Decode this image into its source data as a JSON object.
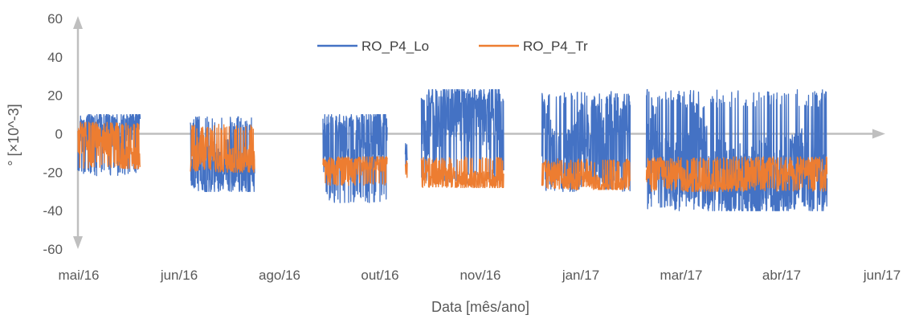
{
  "chart_data": {
    "type": "line",
    "title": "",
    "xlabel": "Data [mês/ano]",
    "ylabel": "° [×10^-3]",
    "ylim": [
      -60,
      60
    ],
    "yticks": [
      "60",
      "40",
      "20",
      "0",
      "-20",
      "-40",
      "-60"
    ],
    "xticks": [
      "mai/16",
      "jun/16",
      "ago/16",
      "out/16",
      "nov/16",
      "jan/17",
      "mar/17",
      "abr/17",
      "jun/17"
    ],
    "xlim": [
      "2016-05-01",
      "2017-06-01"
    ],
    "legend_position": "top-center",
    "grid": false,
    "series": [
      {
        "name": "RO_P4_Lo",
        "color": "#4472C4",
        "segments": [
          {
            "start": "2016-05-01",
            "end": "2016-06-01",
            "low": -22,
            "high": 10,
            "center": -5
          },
          {
            "start": "2016-06-26",
            "end": "2016-07-28",
            "low": -30,
            "high": 9,
            "center": -12
          },
          {
            "start": "2016-08-31",
            "end": "2016-10-02",
            "low": -36,
            "high": 10,
            "center": -5
          },
          {
            "start": "2016-10-11",
            "end": "2016-10-12",
            "low": -22,
            "high": -5,
            "center": -15
          },
          {
            "start": "2016-10-19",
            "end": "2016-11-29",
            "low": -26,
            "high": 23,
            "center": 2
          },
          {
            "start": "2016-12-18",
            "end": "2017-01-31",
            "low": -30,
            "high": 22,
            "center": 2
          },
          {
            "start": "2017-02-08",
            "end": "2017-05-09",
            "low": -40,
            "high": 23,
            "center": 0
          }
        ]
      },
      {
        "name": "RO_P4_Tr",
        "color": "#ED7D31",
        "segments": [
          {
            "start": "2016-05-01",
            "end": "2016-06-01",
            "low": -18,
            "high": 6,
            "center": -6
          },
          {
            "start": "2016-06-26",
            "end": "2016-07-28",
            "low": -20,
            "high": 5,
            "center": -7
          },
          {
            "start": "2016-08-31",
            "end": "2016-10-02",
            "low": -27,
            "high": -12,
            "center": -19
          },
          {
            "start": "2016-10-11",
            "end": "2016-10-12",
            "low": -24,
            "high": -14,
            "center": -19
          },
          {
            "start": "2016-10-19",
            "end": "2016-11-29",
            "low": -28,
            "high": -12,
            "center": -20
          },
          {
            "start": "2016-12-18",
            "end": "2017-01-31",
            "low": -29,
            "high": -13,
            "center": -21
          },
          {
            "start": "2017-02-08",
            "end": "2017-05-09",
            "low": -30,
            "high": -12,
            "center": -20
          }
        ]
      }
    ]
  }
}
